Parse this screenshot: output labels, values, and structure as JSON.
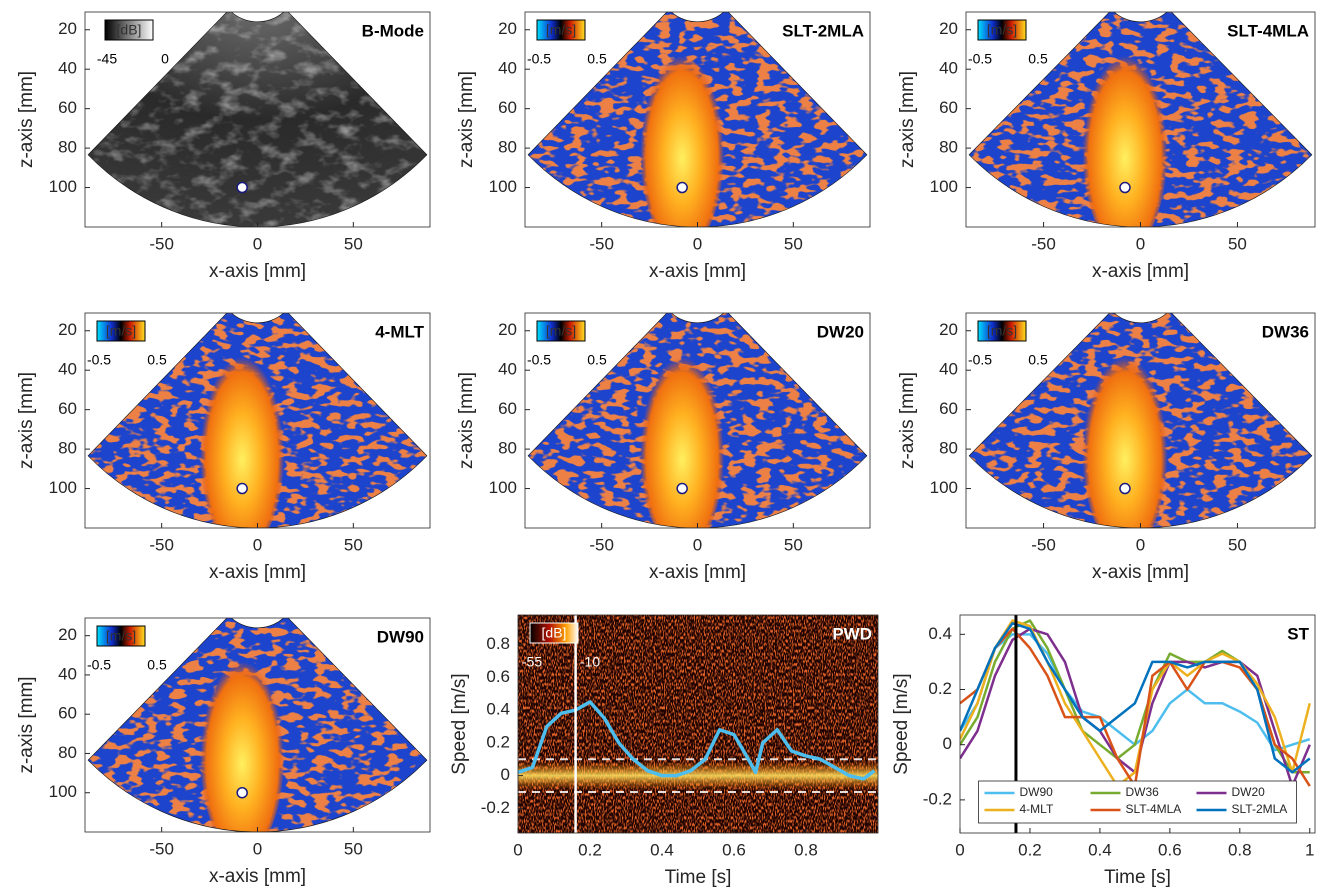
{
  "chart_data": [
    {
      "type": "image",
      "style": "bmode",
      "title": "B-Mode",
      "xlabel": "x-axis [mm]",
      "ylabel": "z-axis [mm]",
      "xlim": [
        -90,
        90
      ],
      "ylim": [
        11,
        120
      ],
      "y_reversed": true,
      "xticks": [
        -50,
        0,
        50
      ],
      "yticks": [
        20,
        40,
        60,
        80,
        100
      ],
      "colorbar": {
        "label": "[dB]",
        "ticks": [
          -45,
          0
        ]
      },
      "marker": {
        "x": -8,
        "z": 100
      }
    },
    {
      "type": "image",
      "style": "doppler",
      "title": "SLT-2MLA",
      "xlabel": "x-axis [mm]",
      "ylabel": "z-axis [mm]",
      "xlim": [
        -90,
        90
      ],
      "ylim": [
        11,
        120
      ],
      "y_reversed": true,
      "xticks": [
        -50,
        0,
        50
      ],
      "yticks": [
        20,
        40,
        60,
        80,
        100
      ],
      "colorbar": {
        "label": "[m/s]",
        "ticks": [
          -0.5,
          0.5
        ]
      },
      "marker": {
        "x": -8,
        "z": 100
      }
    },
    {
      "type": "image",
      "style": "doppler",
      "title": "SLT-4MLA",
      "xlabel": "x-axis [mm]",
      "ylabel": "z-axis [mm]",
      "xlim": [
        -90,
        90
      ],
      "ylim": [
        11,
        120
      ],
      "y_reversed": true,
      "xticks": [
        -50,
        0,
        50
      ],
      "yticks": [
        20,
        40,
        60,
        80,
        100
      ],
      "colorbar": {
        "label": "[m/s]",
        "ticks": [
          -0.5,
          0.5
        ]
      },
      "marker": {
        "x": -8,
        "z": 100
      }
    },
    {
      "type": "image",
      "style": "doppler",
      "title": "4-MLT",
      "xlabel": "x-axis [mm]",
      "ylabel": "z-axis [mm]",
      "xlim": [
        -90,
        90
      ],
      "ylim": [
        11,
        120
      ],
      "y_reversed": true,
      "xticks": [
        -50,
        0,
        50
      ],
      "yticks": [
        20,
        40,
        60,
        80,
        100
      ],
      "colorbar": {
        "label": "[m/s]",
        "ticks": [
          -0.5,
          0.5
        ]
      },
      "marker": {
        "x": -8,
        "z": 100
      }
    },
    {
      "type": "image",
      "style": "doppler",
      "title": "DW20",
      "xlabel": "x-axis [mm]",
      "ylabel": "z-axis [mm]",
      "xlim": [
        -90,
        90
      ],
      "ylim": [
        11,
        120
      ],
      "y_reversed": true,
      "xticks": [
        -50,
        0,
        50
      ],
      "yticks": [
        20,
        40,
        60,
        80,
        100
      ],
      "colorbar": {
        "label": "[m/s]",
        "ticks": [
          -0.5,
          0.5
        ]
      },
      "marker": {
        "x": -8,
        "z": 100
      }
    },
    {
      "type": "image",
      "style": "doppler",
      "title": "DW36",
      "xlabel": "x-axis [mm]",
      "ylabel": "z-axis [mm]",
      "xlim": [
        -90,
        90
      ],
      "ylim": [
        11,
        120
      ],
      "y_reversed": true,
      "xticks": [
        -50,
        0,
        50
      ],
      "yticks": [
        20,
        40,
        60,
        80,
        100
      ],
      "colorbar": {
        "label": "[m/s]",
        "ticks": [
          -0.5,
          0.5
        ]
      },
      "marker": {
        "x": -8,
        "z": 100
      }
    },
    {
      "type": "image",
      "style": "doppler",
      "title": "DW90",
      "xlabel": "x-axis [mm]",
      "ylabel": "z-axis [mm]",
      "xlim": [
        -90,
        90
      ],
      "ylim": [
        11,
        120
      ],
      "y_reversed": true,
      "xticks": [
        -50,
        0,
        50
      ],
      "yticks": [
        20,
        40,
        60,
        80,
        100
      ],
      "colorbar": {
        "label": "[m/s]",
        "ticks": [
          -0.5,
          0.5
        ]
      },
      "marker": {
        "x": -8,
        "z": 100
      }
    },
    {
      "type": "spectrogram",
      "title": "PWD",
      "xlabel": "Time [s]",
      "ylabel": "Speed [m/s]",
      "xlim": [
        0,
        1
      ],
      "ylim": [
        -0.35,
        0.98
      ],
      "xticks": [
        0,
        0.2,
        0.4,
        0.6,
        0.8
      ],
      "yticks": [
        -0.2,
        0,
        0.2,
        0.4,
        0.6,
        0.8
      ],
      "colorbar": {
        "label": "[dB]",
        "ticks": [
          -55,
          -10
        ]
      },
      "dashed_lines": [
        0.1,
        -0.1
      ],
      "cursor": 0.16,
      "x": [
        0,
        0.04,
        0.08,
        0.12,
        0.16,
        0.2,
        0.24,
        0.28,
        0.32,
        0.36,
        0.4,
        0.44,
        0.48,
        0.52,
        0.56,
        0.6,
        0.64,
        0.66,
        0.68,
        0.72,
        0.76,
        0.8,
        0.84,
        0.88,
        0.92,
        0.96,
        0.99
      ],
      "series": [
        {
          "color": "#4dbeee",
          "values": [
            0.02,
            0.05,
            0.3,
            0.38,
            0.4,
            0.45,
            0.35,
            0.2,
            0.1,
            0.03,
            0.0,
            0.0,
            0.03,
            0.1,
            0.28,
            0.25,
            0.1,
            0.02,
            0.2,
            0.28,
            0.15,
            0.12,
            0.1,
            0.05,
            0.0,
            -0.02,
            0.03
          ]
        }
      ]
    },
    {
      "type": "line",
      "title": "ST",
      "xlabel": "Time [s]",
      "ylabel": "Speed [m/s]",
      "xlim": [
        0,
        1.015
      ],
      "ylim": [
        -0.32,
        0.47
      ],
      "xticks": [
        0,
        0.2,
        0.4,
        0.6,
        0.8,
        1
      ],
      "yticks": [
        -0.2,
        0,
        0.2,
        0.4
      ],
      "cursor": 0.16,
      "legend": "lower center",
      "legend_columns": 3,
      "x": [
        0,
        0.05,
        0.1,
        0.15,
        0.2,
        0.25,
        0.3,
        0.35,
        0.4,
        0.45,
        0.5,
        0.55,
        0.6,
        0.65,
        0.7,
        0.75,
        0.8,
        0.85,
        0.9,
        0.95,
        1
      ],
      "series": [
        {
          "name": "DW90",
          "color": "#4dbeee",
          "values": [
            0.05,
            0.15,
            0.35,
            0.4,
            0.4,
            0.33,
            0.2,
            0.12,
            0.1,
            0.05,
            0.0,
            0.05,
            0.15,
            0.2,
            0.15,
            0.15,
            0.12,
            0.08,
            -0.02,
            0.0,
            0.02
          ]
        },
        {
          "name": "DW36",
          "color": "#77ac30",
          "values": [
            0.0,
            0.1,
            0.3,
            0.42,
            0.45,
            0.35,
            0.2,
            0.05,
            0.0,
            -0.05,
            0.0,
            0.2,
            0.33,
            0.3,
            0.3,
            0.34,
            0.3,
            0.2,
            0.0,
            -0.1,
            -0.1
          ]
        },
        {
          "name": "DW20",
          "color": "#7e2f8e",
          "values": [
            -0.05,
            0.05,
            0.25,
            0.38,
            0.42,
            0.4,
            0.3,
            0.1,
            0.05,
            -0.05,
            -0.1,
            0.15,
            0.3,
            0.3,
            0.28,
            0.3,
            0.3,
            0.25,
            0.05,
            -0.15,
            0.0
          ]
        },
        {
          "name": "4-MLT",
          "color": "#edb120",
          "values": [
            0.02,
            0.15,
            0.35,
            0.45,
            0.43,
            0.3,
            0.15,
            0.05,
            -0.05,
            -0.15,
            -0.1,
            0.2,
            0.3,
            0.25,
            0.3,
            0.33,
            0.3,
            0.22,
            0.1,
            -0.1,
            0.15
          ]
        },
        {
          "name": "SLT-4MLA",
          "color": "#d95319",
          "values": [
            0.15,
            0.2,
            0.35,
            0.42,
            0.35,
            0.25,
            0.1,
            0.1,
            0.1,
            -0.05,
            -0.15,
            0.25,
            0.3,
            0.2,
            0.3,
            0.3,
            0.28,
            0.2,
            0.0,
            -0.05,
            -0.15
          ]
        },
        {
          "name": "SLT-2MLA",
          "color": "#0072bd",
          "values": [
            0.05,
            0.2,
            0.35,
            0.44,
            0.42,
            0.3,
            0.2,
            0.1,
            0.05,
            0.1,
            0.15,
            0.3,
            0.3,
            0.28,
            0.3,
            0.3,
            0.3,
            0.2,
            -0.05,
            -0.1,
            -0.05
          ]
        }
      ]
    }
  ]
}
